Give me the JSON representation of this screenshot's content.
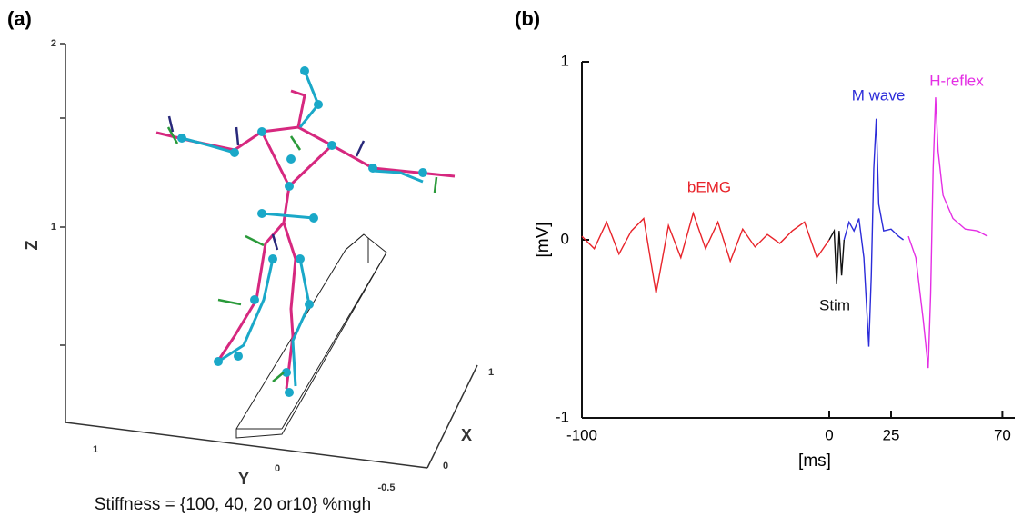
{
  "panel_a": {
    "label": "(a)",
    "z_axis_label": "Z",
    "y_axis_label": "Y",
    "x_axis_label": "X",
    "z_ticks": [
      "2",
      "1"
    ],
    "y_ticks": [
      "1",
      "0",
      "-0.5"
    ],
    "x_ticks": [
      "1",
      "0"
    ],
    "caption": "Stiffness = {100, 40, 20 or10} %mgh"
  },
  "chart_data": {
    "type": "line",
    "panel_label": "(b)",
    "xlabel": "[ms]",
    "ylabel": "[mV]",
    "xlim": [
      -100,
      75
    ],
    "ylim": [
      -1,
      1
    ],
    "xticks": [
      -100,
      0,
      25,
      70
    ],
    "yticks": [
      -1,
      0,
      1
    ],
    "series": [
      {
        "name": "bEMG",
        "color": "#e8232a",
        "x": [
          -100,
          -95,
          -90,
          -85,
          -80,
          -75,
          -70,
          -65,
          -60,
          -55,
          -50,
          -45,
          -40,
          -35,
          -30,
          -25,
          -20,
          -15,
          -10,
          -5,
          0
        ],
        "values": [
          0.02,
          -0.05,
          0.1,
          -0.08,
          0.05,
          0.12,
          -0.3,
          0.08,
          -0.1,
          0.15,
          -0.05,
          0.1,
          -0.12,
          0.06,
          -0.04,
          0.03,
          -0.02,
          0.05,
          0.1,
          -0.1,
          0.0
        ]
      },
      {
        "name": "Stim",
        "color": "#111111",
        "x": [
          0,
          2,
          3,
          4,
          5,
          6
        ],
        "values": [
          0,
          0.05,
          -0.25,
          0.05,
          -0.2,
          0
        ]
      },
      {
        "name": "M wave",
        "color": "#2b2bd9",
        "x": [
          6,
          8,
          10,
          12,
          14,
          16,
          17,
          18,
          19,
          20,
          22,
          25,
          28,
          30
        ],
        "values": [
          0,
          0.1,
          0.05,
          0.12,
          -0.1,
          -0.6,
          -0.2,
          0.4,
          0.68,
          0.2,
          0.05,
          0.06,
          0.02,
          0
        ]
      },
      {
        "name": "H-reflex",
        "color": "#e42ee4",
        "x": [
          32,
          35,
          38,
          40,
          41,
          42,
          43,
          44,
          46,
          50,
          55,
          60,
          64
        ],
        "values": [
          0.02,
          -0.1,
          -0.45,
          -0.72,
          -0.3,
          0.4,
          0.8,
          0.5,
          0.25,
          0.12,
          0.06,
          0.05,
          0.02
        ]
      }
    ]
  }
}
